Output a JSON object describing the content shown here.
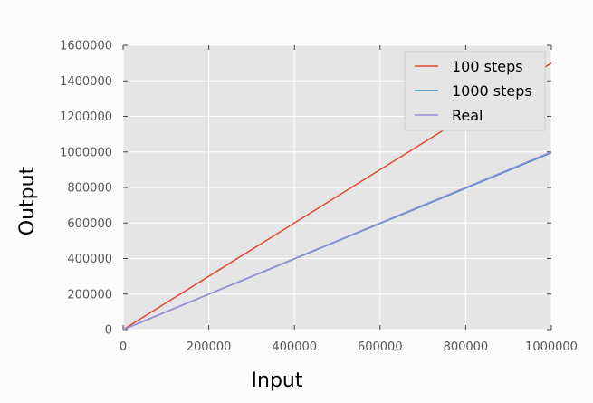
{
  "chart_data": {
    "type": "line",
    "title": "",
    "xlabel": "Input",
    "ylabel": "Output",
    "xlim": [
      0,
      1000000
    ],
    "ylim": [
      0,
      1600000
    ],
    "xticks": [
      0,
      200000,
      400000,
      600000,
      800000,
      1000000
    ],
    "yticks": [
      0,
      200000,
      400000,
      600000,
      800000,
      1000000,
      1200000,
      1400000,
      1600000
    ],
    "grid": true,
    "legend_position": "top-right",
    "series": [
      {
        "name": "100 steps",
        "color": "#e24a33",
        "x": [
          0,
          1000000
        ],
        "y": [
          0,
          1500000
        ]
      },
      {
        "name": "1000 steps",
        "color": "#348abd",
        "x": [
          0,
          1000000
        ],
        "y": [
          0,
          995000
        ]
      },
      {
        "name": "Real",
        "color": "#988ed5",
        "x": [
          0,
          1000000
        ],
        "y": [
          0,
          1000000
        ]
      }
    ]
  },
  "colors": {
    "plot_background": "#e5e5e5",
    "grid": "#ffffff",
    "tick_text": "#555555",
    "axis_label_text": "#000000"
  }
}
